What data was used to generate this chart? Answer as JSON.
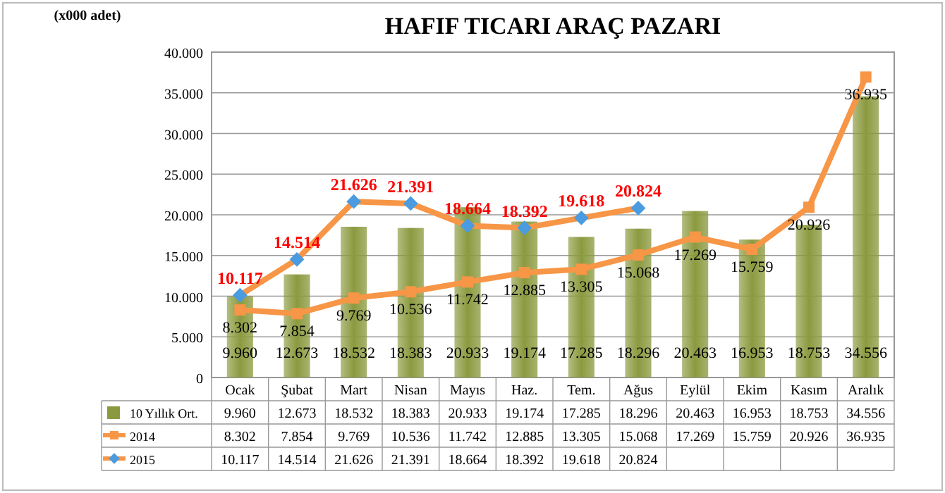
{
  "chart_data": {
    "type": "bar",
    "title": "HAFIF TICARI ARAÇ PAZARI",
    "ylabel": "(x000 adet)",
    "categories": [
      "Ocak",
      "Şubat",
      "Mart",
      "Nisan",
      "Mayıs",
      "Haz.",
      "Tem.",
      "Ağus",
      "Eylül",
      "Ekim",
      "Kasım",
      "Aralık"
    ],
    "ylim": [
      0,
      40000
    ],
    "yticks": [
      {
        "value": 0,
        "label": "0"
      },
      {
        "value": 5000,
        "label": "5.000"
      },
      {
        "value": 10000,
        "label": "10.000"
      },
      {
        "value": 15000,
        "label": "15.000"
      },
      {
        "value": 20000,
        "label": "20.000"
      },
      {
        "value": 25000,
        "label": "25.000"
      },
      {
        "value": 30000,
        "label": "30.000"
      },
      {
        "value": 35000,
        "label": "35.000"
      },
      {
        "value": 40000,
        "label": "40.000"
      }
    ],
    "grid": "y",
    "legend": "bottom",
    "series": [
      {
        "name": "10 Yıllık Ort.",
        "color": "#8b9a3f",
        "values": [
          9960,
          12673,
          18532,
          18383,
          20933,
          19174,
          17285,
          18296,
          20463,
          16953,
          18753,
          34556
        ],
        "value_labels": [
          "9.960",
          "12.673",
          "18.532",
          "18.383",
          "20.933",
          "19.174",
          "17.285",
          "18.296",
          "20.463",
          "16.953",
          "18.753",
          "34.556"
        ]
      },
      {
        "name": "2014",
        "type": "line",
        "color": "#f79646",
        "marker": "square",
        "values": [
          8302,
          7854,
          9769,
          10536,
          11742,
          12885,
          13305,
          15068,
          17269,
          15759,
          20926,
          36935
        ],
        "value_labels": [
          "8.302",
          "7.854",
          "9.769",
          "10.536",
          "11.742",
          "12.885",
          "13.305",
          "15.068",
          "17.269",
          "15.759",
          "20.926",
          "36.935"
        ]
      },
      {
        "name": "2015",
        "type": "line",
        "color": "#f79646",
        "marker": "diamond",
        "values": [
          10117,
          14514,
          21626,
          21391,
          18664,
          18392,
          19618,
          20824,
          null,
          null,
          null,
          null
        ],
        "value_labels": [
          "10.117",
          "14.514",
          "21.626",
          "21.391",
          "18.664",
          "18.392",
          "19.618",
          "20.824",
          null,
          null,
          null,
          null
        ]
      }
    ]
  }
}
